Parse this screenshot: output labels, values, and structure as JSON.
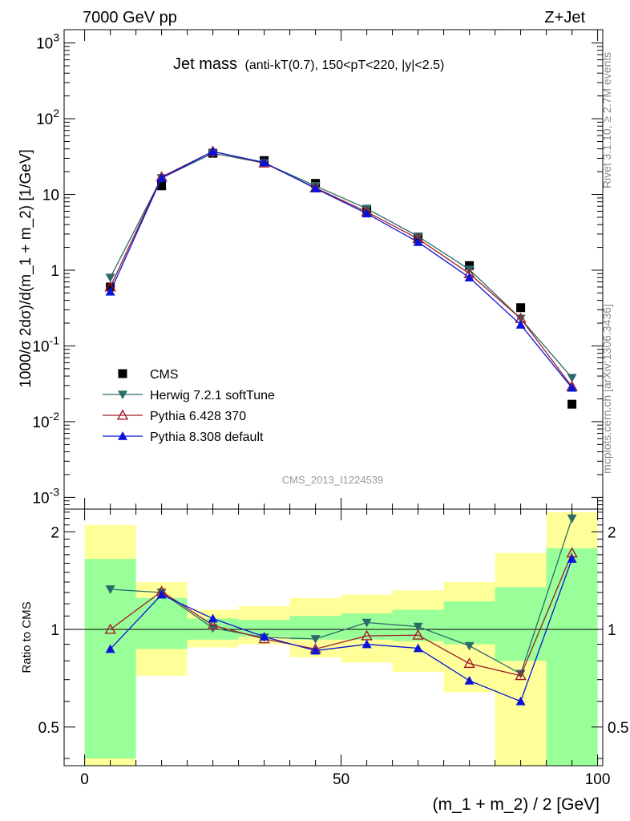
{
  "header": {
    "left": "7000 GeV pp",
    "right": "Z+Jet"
  },
  "side_labels": {
    "rivet": "Rivet 3.1.10, ≥ 2.7M events",
    "mcplots": "mcplots.cern.ch [arXiv:1306.3436]"
  },
  "analysis_id": "CMS_2013_I1224539",
  "chart_data": [
    {
      "type": "scatter",
      "title_main": "Jet mass",
      "title_detail": "(anti-kT(0.7), 150<pT<220, |y|<2.5)",
      "ylabel": "1000/σ 2dσ)/d(m_1 + m_2) [1/GeV]",
      "yscale": "log",
      "ylim": [
        0.0007,
        1500
      ],
      "xlim": [
        -4,
        101
      ],
      "x": [
        5,
        15,
        25,
        35,
        45,
        55,
        65,
        75,
        85,
        95
      ],
      "ytick_labels": [
        "10^-3",
        "10^-2",
        "10^-1",
        "1",
        "10",
        "10^2",
        "10^3"
      ],
      "legend_position": "lower-left",
      "series": [
        {
          "name": "CMS",
          "color": "#000000",
          "marker": "square",
          "values": [
            0.6,
            13,
            35,
            28,
            14,
            6.2,
            2.7,
            1.15,
            0.32,
            0.017
          ]
        },
        {
          "name": "Herwig 7.2.1 softTune",
          "color": "#2b6b6b",
          "marker": "triangle-down",
          "values": [
            0.8,
            16.5,
            35,
            26,
            13,
            6.5,
            2.8,
            1.02,
            0.23,
            0.038
          ]
        },
        {
          "name": "Pythia 6.428 370",
          "color": "#a01c28",
          "marker": "triangle-up-open",
          "values": [
            0.6,
            17,
            37,
            26,
            12.2,
            5.9,
            2.6,
            0.9,
            0.23,
            0.029
          ]
        },
        {
          "name": "Pythia 8.308 default",
          "color": "#0a14d8",
          "marker": "triangle-up",
          "values": [
            0.52,
            16.5,
            37,
            26.5,
            12,
            5.6,
            2.35,
            0.8,
            0.19,
            0.028
          ]
        }
      ]
    },
    {
      "type": "line",
      "ylabel": "Ratio to CMS",
      "xlabel": "(m_1 + m_2) / 2 [GeV]",
      "yscale": "log",
      "ylim": [
        0.38,
        2.35
      ],
      "xlim": [
        -4,
        101
      ],
      "xticks": [
        0,
        50,
        100
      ],
      "yticks": [
        0.5,
        1,
        2
      ],
      "reference_line": 1,
      "bin_edges": [
        0,
        10,
        20,
        30,
        40,
        50,
        60,
        70,
        80,
        90,
        100
      ],
      "band_stat": {
        "color": "#99ff99",
        "low": [
          0.4,
          0.87,
          0.93,
          0.95,
          0.93,
          0.93,
          0.92,
          0.9,
          0.8,
          0.2
        ],
        "high": [
          1.65,
          1.25,
          1.08,
          1.07,
          1.1,
          1.12,
          1.15,
          1.22,
          1.35,
          1.78
        ]
      },
      "band_total": {
        "color": "#ffff99",
        "low": [
          0.37,
          0.72,
          0.88,
          0.9,
          0.82,
          0.79,
          0.74,
          0.64,
          0.2,
          0.2
        ],
        "high": [
          2.1,
          1.4,
          1.15,
          1.18,
          1.25,
          1.28,
          1.32,
          1.4,
          1.72,
          2.3
        ]
      },
      "x": [
        5,
        15,
        25,
        35,
        45,
        55,
        65,
        75,
        85,
        95
      ],
      "series": [
        {
          "name": "Herwig 7.2.1 softTune",
          "color": "#2b6b6b",
          "marker": "triangle-down",
          "values": [
            1.33,
            1.3,
            1.01,
            0.945,
            0.935,
            1.05,
            1.02,
            0.89,
            0.73,
            2.2
          ]
        },
        {
          "name": "Pythia 6.428 370",
          "color": "#a01c28",
          "marker": "triangle-up-open",
          "values": [
            1.0,
            1.31,
            1.03,
            0.935,
            0.87,
            0.955,
            0.96,
            0.785,
            0.72,
            1.72
          ]
        },
        {
          "name": "Pythia 8.308 default",
          "color": "#0a14d8",
          "marker": "triangle-up",
          "values": [
            0.87,
            1.28,
            1.08,
            0.95,
            0.86,
            0.9,
            0.875,
            0.695,
            0.6,
            1.65
          ]
        }
      ]
    }
  ]
}
